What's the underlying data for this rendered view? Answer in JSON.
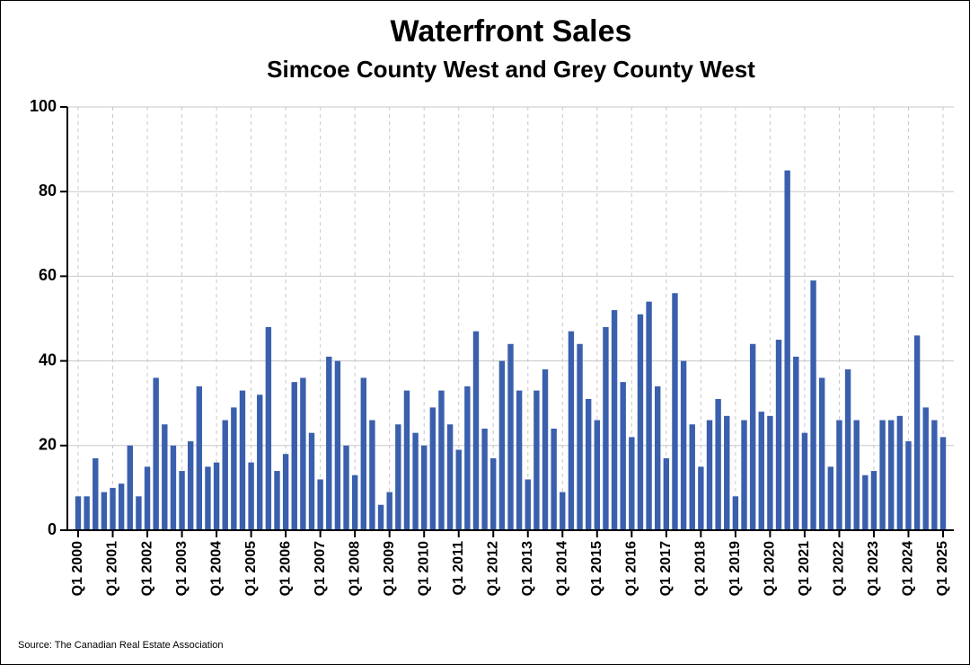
{
  "chart_data": {
    "type": "bar",
    "title": "Waterfront Sales",
    "subtitle": "Simcoe County West and Grey County West",
    "source": "Source: The Canadian Real Estate Association",
    "categories": [
      "Q1 2000",
      null,
      null,
      null,
      "Q1 2001",
      null,
      null,
      null,
      "Q1 2002",
      null,
      null,
      null,
      "Q1 2003",
      null,
      null,
      null,
      "Q1 2004",
      null,
      null,
      null,
      "Q1 2005",
      null,
      null,
      null,
      "Q1 2006",
      null,
      null,
      null,
      "Q1 2007",
      null,
      null,
      null,
      "Q1 2008",
      null,
      null,
      null,
      "Q1 2009",
      null,
      null,
      null,
      "Q1 2010",
      null,
      null,
      null,
      "Q1 2011",
      null,
      null,
      null,
      "Q1 2012",
      null,
      null,
      null,
      "Q1 2013",
      null,
      null,
      null,
      "Q1 2014",
      null,
      null,
      null,
      "Q1 2015",
      null,
      null,
      null,
      "Q1 2016",
      null,
      null,
      null,
      "Q1 2017",
      null,
      null,
      null,
      "Q1 2018",
      null,
      null,
      null,
      "Q1 2019",
      null,
      null,
      null,
      "Q1 2020",
      null,
      null,
      null,
      "Q1 2021",
      null,
      null,
      null,
      "Q1 2022",
      null,
      null,
      null,
      "Q1 2023",
      null,
      null,
      null,
      "Q1 2024",
      null,
      null,
      null,
      "Q1 2025"
    ],
    "values": [
      8,
      8,
      17,
      9,
      10,
      11,
      20,
      8,
      15,
      36,
      25,
      20,
      14,
      21,
      34,
      15,
      16,
      26,
      29,
      33,
      16,
      32,
      48,
      14,
      18,
      35,
      36,
      23,
      12,
      41,
      40,
      20,
      13,
      36,
      26,
      6,
      9,
      25,
      33,
      23,
      20,
      29,
      33,
      25,
      19,
      34,
      47,
      24,
      17,
      40,
      44,
      33,
      12,
      33,
      38,
      24,
      9,
      47,
      44,
      31,
      26,
      48,
      52,
      35,
      22,
      51,
      54,
      34,
      17,
      56,
      40,
      25,
      15,
      26,
      31,
      27,
      8,
      26,
      44,
      28,
      27,
      45,
      85,
      41,
      23,
      59,
      36,
      15,
      26,
      38,
      26,
      13,
      14,
      26,
      26,
      27,
      21,
      46,
      29,
      26,
      22
    ],
    "color": "#3a5fad",
    "ylim": [
      0,
      100
    ],
    "yticks": [
      0,
      20,
      40,
      60,
      80,
      100
    ],
    "grid": true
  }
}
